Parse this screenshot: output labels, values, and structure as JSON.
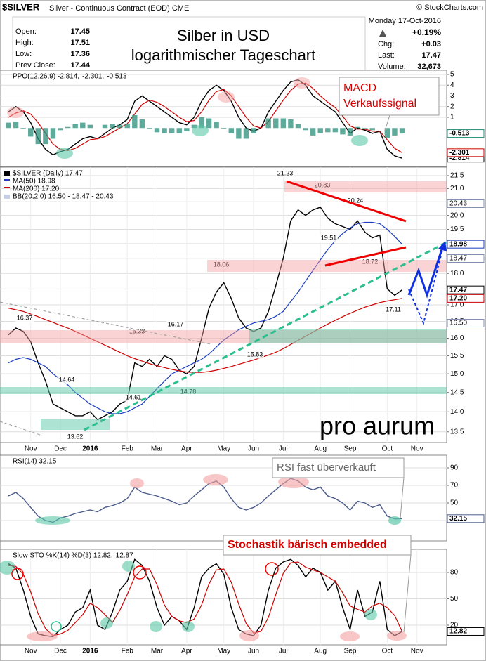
{
  "header": {
    "symbol": "$SILVER",
    "description": "Silver - Continuous Contract (EOD) CME",
    "source": "© StockCharts.com",
    "quote": [
      [
        "Open:",
        "17.45"
      ],
      [
        "High:",
        "17.51"
      ],
      [
        "Low:",
        "17.36"
      ],
      [
        "Prev Close:",
        "17.44"
      ]
    ],
    "date": "Monday  17-Oct-2016",
    "change_pct": "+0.19%",
    "stats": [
      [
        "Chg:",
        "+0.03"
      ],
      [
        "Last:",
        "17.47"
      ],
      [
        "Volume:",
        "32,673"
      ]
    ]
  },
  "notes": {
    "title": [
      "Silber in USD",
      "logarithmischer Tageschart"
    ],
    "macd": [
      "MACD",
      "Verkaufssignal"
    ],
    "rsi": "RSI fast überverkauft",
    "sto": "Stochastik bärisch embedded",
    "logo": "pro aurum"
  },
  "chart_data": [
    {
      "type": "line",
      "ylim": [
        -3.59,
        5.39
      ],
      "yticks": [
        1,
        2,
        3,
        4,
        5
      ],
      "grid": true,
      "legend": [
        {
          "text": "PPO(12,26,9) -2.814,",
          "color": "#000000"
        },
        {
          "text": "-2.301,",
          "color": "#cc0000"
        },
        {
          "text": "-0.513",
          "color": "#2a8f7a"
        }
      ],
      "series": [
        {
          "color": "#000000",
          "values": [
            1.5,
            2.0,
            1.5,
            0.5,
            -1.0,
            -2.0,
            -2.5,
            -2.2,
            -2.0,
            -1.5,
            -1.0,
            -0.8,
            -1.0,
            -0.5,
            0.0,
            0.3,
            0.8,
            2.5,
            3.0,
            2.5,
            2.0,
            1.5,
            1.0,
            0.5,
            0.3,
            1.0,
            2.5,
            3.5,
            4.0,
            3.5,
            2.5,
            1.0,
            0.0,
            -0.3,
            0.0,
            1.5,
            2.5,
            3.5,
            4.3,
            4.5,
            4.0,
            3.0,
            2.5,
            2.0,
            1.5,
            0.5,
            -0.5,
            0.0,
            -0.2,
            -0.5,
            -0.3,
            -2.0,
            -2.6,
            -2.814,
            null,
            null,
            null,
            null,
            null,
            null
          ]
        },
        {
          "color": "#cc0000",
          "values": [
            1.0,
            1.4,
            1.6,
            1.3,
            0.5,
            -0.5,
            -1.5,
            -2.0,
            -2.1,
            -1.9,
            -1.5,
            -1.1,
            -1.0,
            -0.8,
            -0.4,
            0.0,
            0.4,
            1.3,
            2.2,
            2.6,
            2.4,
            2.0,
            1.5,
            1.0,
            0.6,
            0.7,
            1.5,
            2.6,
            3.4,
            3.6,
            3.0,
            2.0,
            1.0,
            0.2,
            0.0,
            0.6,
            1.6,
            2.6,
            3.5,
            4.1,
            4.2,
            3.7,
            3.0,
            2.4,
            1.9,
            1.1,
            0.2,
            -0.1,
            -0.1,
            -0.3,
            -0.3,
            -1.1,
            -1.9,
            -2.301,
            null,
            null,
            null,
            null,
            null,
            null
          ]
        },
        {
          "type": "bar",
          "color": "#2a8f7a",
          "values": [
            0.5,
            0.6,
            -0.1,
            -0.8,
            -1.5,
            -1.5,
            -1.0,
            -0.2,
            0.1,
            0.4,
            0.5,
            0.3,
            0.0,
            0.3,
            0.4,
            0.3,
            0.4,
            1.2,
            0.8,
            -0.1,
            -0.4,
            -0.5,
            -0.5,
            -0.5,
            -0.3,
            0.3,
            1.0,
            0.9,
            0.6,
            -0.1,
            -0.5,
            -1.0,
            -1.0,
            -0.5,
            0.0,
            0.9,
            0.9,
            0.9,
            0.8,
            0.4,
            -0.2,
            -0.7,
            -0.5,
            -0.4,
            -0.4,
            -0.6,
            -0.7,
            0.1,
            -0.1,
            -0.2,
            0.0,
            -0.9,
            -0.7,
            -0.513,
            null,
            null,
            null,
            null,
            null,
            null
          ]
        }
      ]
    },
    {
      "type": "line",
      "log_scale": true,
      "ylim": [
        13.24,
        21.83
      ],
      "grid": true,
      "yticks": [
        13.5,
        {
          "value": 14,
          "label": "14.0"
        },
        14.5,
        {
          "value": 15,
          "label": "15.0"
        },
        15.5,
        {
          "value": 16,
          "label": "16.0"
        },
        16.5,
        {
          "value": 17,
          "label": "17.0"
        },
        17.5,
        {
          "value": 18,
          "label": "18.0"
        },
        18.5,
        {
          "value": 19,
          "label": "19.0"
        },
        19.5,
        {
          "value": 20,
          "label": "20.0"
        },
        20.5,
        {
          "value": 21,
          "label": "21.0"
        },
        21.5
      ],
      "categories": [
        null,
        null,
        null,
        "Nov",
        null,
        null,
        null,
        "Dec",
        null,
        null,
        null,
        "2016",
        null,
        null,
        null,
        null,
        "Feb",
        null,
        null,
        null,
        "Mar",
        null,
        null,
        null,
        "Apr",
        null,
        null,
        null,
        null,
        "May",
        null,
        null,
        null,
        "Jun",
        null,
        null,
        null,
        "Jul",
        null,
        null,
        null,
        null,
        "Aug",
        null,
        null,
        null,
        "Sep",
        null,
        null,
        null,
        null,
        "Oct",
        null,
        null,
        null,
        "Nov",
        null,
        null,
        null,
        null
      ],
      "series": [
        {
          "name": "$SILVER (Daily) 17.47",
          "color": "#000000",
          "values": [
            16.1,
            16.3,
            16.2,
            15.9,
            15.3,
            14.8,
            14.2,
            14.1,
            14.0,
            13.9,
            13.9,
            14.0,
            13.8,
            13.9,
            14.0,
            14.2,
            14.3,
            15.3,
            15.2,
            15.4,
            15.2,
            15.5,
            15.4,
            15.1,
            15.0,
            15.2,
            16.0,
            16.9,
            17.4,
            17.7,
            17.2,
            16.6,
            16.3,
            16.2,
            16.3,
            16.8,
            17.6,
            18.5,
            19.8,
            20.2,
            20.0,
            20.2,
            20.3,
            19.9,
            19.7,
            19.6,
            19.5,
            19.8,
            19.4,
            19.2,
            19.3,
            17.5,
            17.3,
            17.47,
            null,
            null,
            null,
            null,
            null,
            null
          ]
        },
        {
          "name": "MA(50) 18.98",
          "color": "#1f3fbf",
          "values": [
            15.3,
            15.4,
            15.45,
            15.4,
            15.3,
            15.2,
            15.0,
            14.85,
            14.7,
            14.5,
            14.35,
            14.2,
            14.1,
            14.0,
            13.95,
            13.95,
            14.0,
            14.1,
            14.2,
            14.4,
            14.6,
            14.8,
            15.0,
            15.1,
            15.2,
            15.3,
            15.4,
            15.55,
            15.75,
            15.95,
            16.1,
            16.25,
            16.35,
            16.45,
            16.5,
            16.55,
            16.65,
            16.8,
            17.1,
            17.4,
            17.75,
            18.1,
            18.45,
            18.8,
            19.1,
            19.35,
            19.55,
            19.7,
            19.75,
            19.75,
            19.7,
            19.5,
            19.25,
            18.98,
            null,
            null,
            null,
            null,
            null,
            null
          ]
        },
        {
          "name": "MA(200) 17.20",
          "color": "#cc0000",
          "values": [
            16.9,
            16.85,
            16.8,
            16.72,
            16.64,
            16.55,
            16.47,
            16.38,
            16.3,
            16.2,
            16.1,
            16.0,
            15.9,
            15.8,
            15.7,
            15.6,
            15.5,
            15.42,
            15.35,
            15.28,
            15.22,
            15.17,
            15.12,
            15.08,
            15.05,
            15.04,
            15.04,
            15.06,
            15.1,
            15.15,
            15.2,
            15.26,
            15.32,
            15.38,
            15.45,
            15.52,
            15.6,
            15.7,
            15.82,
            15.94,
            16.06,
            16.18,
            16.3,
            16.42,
            16.53,
            16.64,
            16.74,
            16.84,
            16.93,
            17.0,
            17.07,
            17.12,
            17.16,
            17.2,
            null,
            null,
            null,
            null,
            null,
            null
          ],
          "value_labels": [
            null,
            null,
            null,
            null,
            null,
            null,
            null,
            null,
            null,
            null,
            null,
            null,
            null,
            null,
            null,
            null,
            null,
            null,
            null,
            null,
            null,
            null,
            null,
            null,
            null,
            null,
            null,
            null,
            null,
            null,
            null,
            null,
            null,
            null,
            null,
            null,
            null,
            null,
            null,
            null,
            null,
            null,
            null,
            null,
            null,
            null,
            null,
            null,
            null,
            null,
            null,
            null,
            null,
            "17.20",
            null,
            null,
            null,
            null,
            null,
            null
          ]
        }
      ],
      "bb_legend": "BB(20,2.0) 16.50 - 18.47 - 20.43",
      "bb_tags": [
        "20.43",
        "18.47",
        "16.50"
      ],
      "annotations": [
        "16.37",
        "14.64",
        "13.62",
        "15.33",
        "16.17",
        "14.61",
        "14.78",
        "18.06",
        "15.83",
        "21.23",
        "20.83",
        "20.24",
        "19.51",
        "18.72",
        "17.11"
      ]
    },
    {
      "type": "line",
      "ylim": [
        6.8,
        104.4
      ],
      "yticks": [
        30,
        50,
        70,
        90
      ],
      "grid": true,
      "legend": [
        {
          "text": "RSI(14) 32.15",
          "color": "#000000"
        }
      ],
      "series": [
        {
          "color": "#4a5a8a",
          "values": [
            58,
            62,
            55,
            45,
            35,
            30,
            28,
            33,
            35,
            38,
            40,
            42,
            40,
            45,
            47,
            50,
            55,
            68,
            62,
            60,
            58,
            55,
            52,
            48,
            50,
            58,
            65,
            72,
            75,
            68,
            55,
            45,
            42,
            45,
            50,
            58,
            65,
            72,
            78,
            75,
            68,
            65,
            68,
            58,
            55,
            50,
            42,
            52,
            50,
            45,
            48,
            35,
            32,
            32.15,
            null,
            null,
            null,
            null,
            null,
            null
          ]
        }
      ]
    },
    {
      "type": "line",
      "ylim": [
        -2.4,
        106.4
      ],
      "yticks": [
        20,
        50,
        80
      ],
      "grid": true,
      "categories": [
        null,
        null,
        null,
        "Nov",
        null,
        null,
        null,
        "Dec",
        null,
        null,
        null,
        "2016",
        null,
        null,
        null,
        null,
        "Feb",
        null,
        null,
        null,
        "Mar",
        null,
        null,
        null,
        "Apr",
        null,
        null,
        null,
        null,
        "May",
        null,
        null,
        null,
        "Jun",
        null,
        null,
        null,
        "Jul",
        null,
        null,
        null,
        null,
        "Aug",
        null,
        null,
        null,
        "Sep",
        null,
        null,
        null,
        null,
        "Oct",
        null,
        null,
        null,
        "Nov",
        null,
        null,
        null,
        null
      ],
      "legend": [
        {
          "text": "Slow STO %K(14) %D(3) 12.82,",
          "color": "#000000"
        },
        {
          "text": "12.87",
          "color": "#cc0000"
        }
      ],
      "series": [
        {
          "color": "#000000",
          "values": [
            90,
            85,
            60,
            30,
            10,
            8,
            7,
            15,
            20,
            35,
            40,
            60,
            20,
            15,
            35,
            60,
            70,
            95,
            88,
            70,
            40,
            20,
            30,
            25,
            15,
            40,
            75,
            85,
            90,
            78,
            40,
            15,
            10,
            8,
            20,
            60,
            85,
            92,
            95,
            88,
            75,
            85,
            80,
            60,
            70,
            40,
            15,
            60,
            30,
            35,
            70,
            15,
            8,
            12.82,
            null,
            null,
            null,
            null,
            null,
            null
          ]
        },
        {
          "color": "#cc0000",
          "values": [
            88,
            87,
            78,
            58,
            33,
            16,
            8,
            10,
            14,
            23,
            32,
            45,
            40,
            32,
            23,
            37,
            55,
            75,
            84,
            84,
            66,
            43,
            30,
            25,
            23,
            27,
            43,
            67,
            83,
            84,
            69,
            44,
            22,
            11,
            13,
            29,
            55,
            79,
            91,
            92,
            86,
            83,
            80,
            75,
            70,
            57,
            42,
            38,
            35,
            42,
            45,
            40,
            31,
            12.87,
            null,
            null,
            null,
            null,
            null,
            null
          ]
        }
      ]
    }
  ]
}
